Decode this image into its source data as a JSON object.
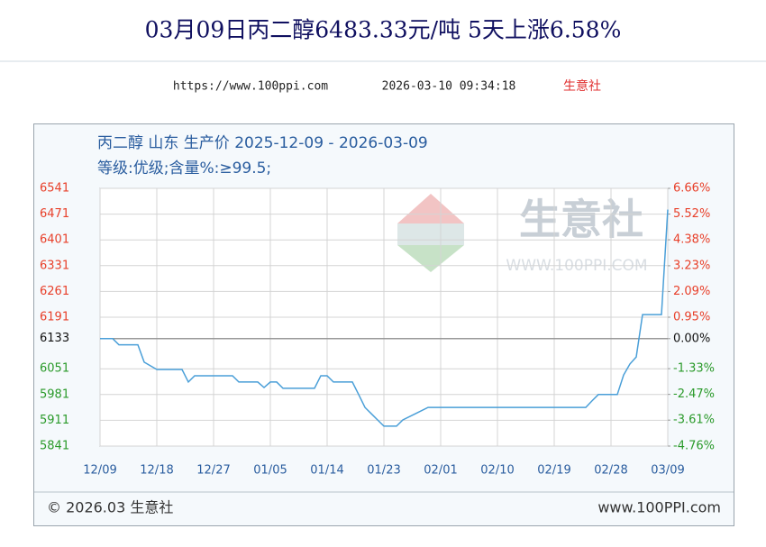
{
  "header": {
    "title": "03月09日丙二醇6483.33元/吨 5天上涨6.58%",
    "url": "https://www.100ppi.com",
    "timestamp": "2026-03-10 09:34:18",
    "source": "生意社"
  },
  "chart_data": {
    "type": "line",
    "title": "丙二醇 山东 生产价 2025-12-09 - 2026-03-09",
    "subtitle": "等级:优级;含量%:≥99.5;",
    "x": [
      "2025-12-09",
      "2025-12-11",
      "2025-12-12",
      "2025-12-15",
      "2025-12-16",
      "2025-12-18",
      "2025-12-22",
      "2025-12-23",
      "2025-12-24",
      "2025-12-30",
      "2025-12-31",
      "2026-01-03",
      "2026-01-04",
      "2026-01-05",
      "2026-01-06",
      "2026-01-07",
      "2026-01-12",
      "2026-01-13",
      "2026-01-14",
      "2026-01-15",
      "2026-01-18",
      "2026-01-19",
      "2026-01-20",
      "2026-01-21",
      "2026-01-22",
      "2026-01-23",
      "2026-01-25",
      "2026-01-26",
      "2026-01-28",
      "2026-01-30",
      "2026-02-24",
      "2026-02-25",
      "2026-02-26",
      "2026-03-01",
      "2026-03-02",
      "2026-03-03",
      "2026-03-04",
      "2026-03-05",
      "2026-03-08",
      "2026-03-09"
    ],
    "values": [
      6133,
      6133,
      6116,
      6116,
      6069,
      6049,
      6049,
      6015,
      6032,
      6032,
      6015,
      6015,
      6000,
      6015,
      6015,
      5998,
      5998,
      6032,
      6032,
      6015,
      6015,
      5981,
      5946,
      5929,
      5912,
      5895,
      5895,
      5912,
      5929,
      5946,
      5946,
      5964,
      5981,
      5981,
      6034,
      6064,
      6083,
      6198,
      6198,
      6483.33
    ],
    "color": "#4a9fd8",
    "xlim": [
      "2025-12-09",
      "2026-03-09"
    ],
    "xticks": [
      {
        "value": "2025-12-09",
        "label": "12/09"
      },
      {
        "value": "2025-12-18",
        "label": "12/18"
      },
      {
        "value": "2025-12-27",
        "label": "12/27"
      },
      {
        "value": "2026-01-05",
        "label": "01/05"
      },
      {
        "value": "2026-01-14",
        "label": "01/14"
      },
      {
        "value": "2026-01-23",
        "label": "01/23"
      },
      {
        "value": "2026-02-01",
        "label": "02/01"
      },
      {
        "value": "2026-02-10",
        "label": "02/10"
      },
      {
        "value": "2026-02-19",
        "label": "02/19"
      },
      {
        "value": "2026-02-28",
        "label": "02/28"
      },
      {
        "value": "2026-03-09",
        "label": "03/09"
      }
    ],
    "ylim": [
      5841,
      6541
    ],
    "yticks": [
      6541,
      6471,
      6401,
      6331,
      6261,
      6191,
      6133,
      6051,
      5981,
      5911,
      5841
    ],
    "y2lim": [
      -4.76,
      6.66
    ],
    "y2ticks": [
      {
        "value": 6.66,
        "label": "6.66%"
      },
      {
        "value": 5.52,
        "label": "5.52%"
      },
      {
        "value": 4.38,
        "label": "4.38%"
      },
      {
        "value": 3.23,
        "label": "3.23%"
      },
      {
        "value": 2.09,
        "label": "2.09%"
      },
      {
        "value": 0.95,
        "label": "0.95%"
      },
      {
        "value": 0,
        "label": "0.00%"
      },
      {
        "value": -1.33,
        "label": "-1.33%"
      },
      {
        "value": -2.47,
        "label": "-2.47%"
      },
      {
        "value": -3.61,
        "label": "-3.61%"
      },
      {
        "value": -4.76,
        "label": "-4.76%"
      }
    ],
    "grid": true,
    "watermark": {
      "brand": "生意社",
      "site": "WWW.100PPI.COM"
    },
    "footer": {
      "copyright": "© 2026.03 生意社",
      "site": "www.100PPI.com"
    }
  }
}
